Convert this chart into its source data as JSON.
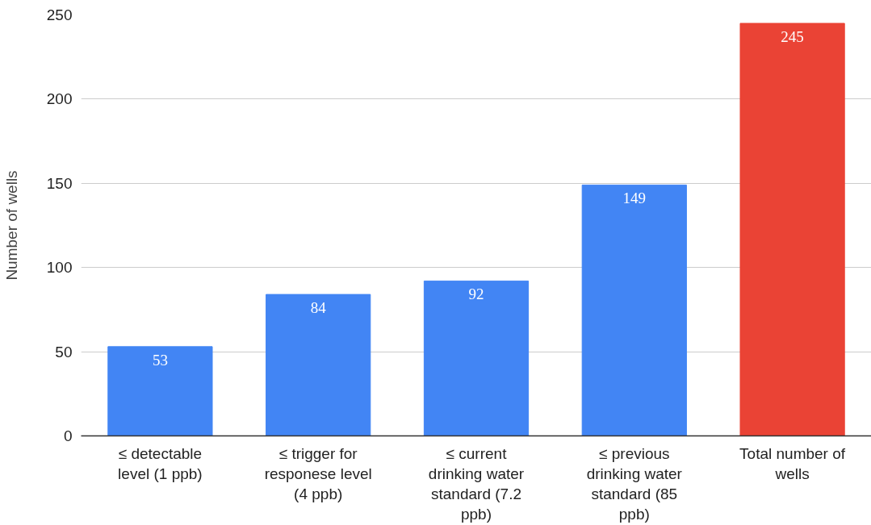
{
  "chart_data": {
    "type": "bar",
    "ylabel": "Number of wells",
    "categories": [
      "≤ detectable level (1 ppb)",
      "≤ trigger for responese level (4 ppb)",
      "≤ current drinking water standard (7.2 ppb)",
      "≤ previous drinking water standard (85 ppb)",
      "Total number of wells"
    ],
    "values": [
      53,
      84,
      92,
      149,
      245
    ],
    "colors": [
      "#4285f4",
      "#4285f4",
      "#4285f4",
      "#4285f4",
      "#ea4335"
    ],
    "ylim": [
      0,
      250
    ],
    "yticks": [
      0,
      50,
      100,
      150,
      200,
      250
    ],
    "grid": "y",
    "data_labels": true
  }
}
